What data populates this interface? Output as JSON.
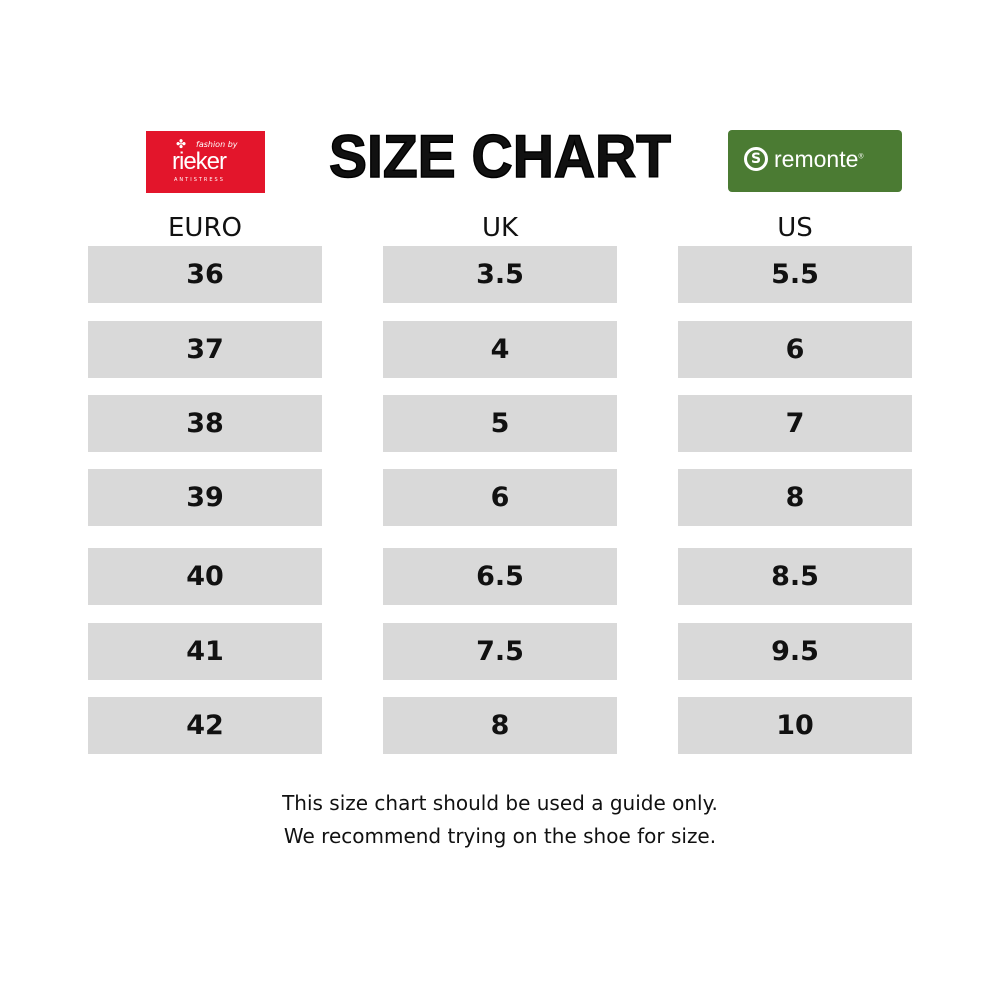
{
  "title": "SIZE CHART",
  "logos": {
    "left": {
      "brand": "rieker",
      "tagline": "fashion by",
      "subline": "ANTISTRESS",
      "color": "#e3152b"
    },
    "right": {
      "brand": "remonte",
      "mark": "®",
      "color": "#4b7b33"
    }
  },
  "columns": [
    {
      "header": "EURO",
      "values": [
        "36",
        "37",
        "38",
        "39",
        "40",
        "41",
        "42"
      ]
    },
    {
      "header": "UK",
      "values": [
        "3.5",
        "4",
        "5",
        "6",
        "6.5",
        "7.5",
        "8"
      ]
    },
    {
      "header": "US",
      "values": [
        "5.5",
        "6",
        "7",
        "8",
        "8.5",
        "9.5",
        "10"
      ]
    }
  ],
  "note": {
    "line1": "This size chart should be used a guide only.",
    "line2": "We recommend trying on the shoe for size."
  }
}
